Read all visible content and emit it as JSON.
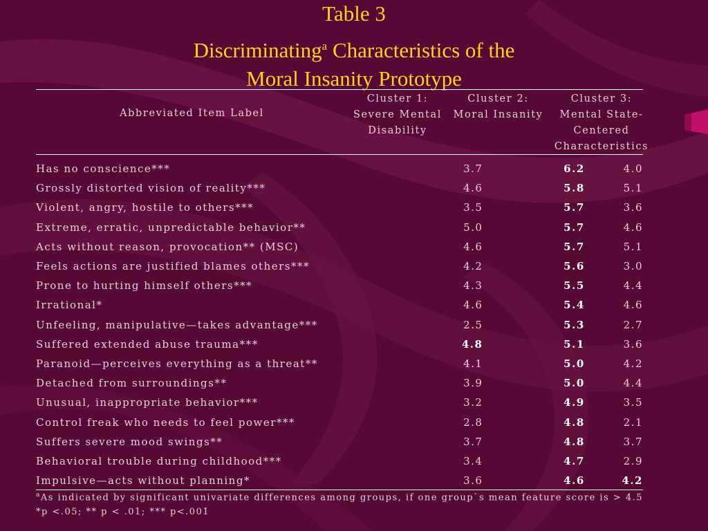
{
  "colors": {
    "background": "#5a0a36",
    "title": "#ffd21f",
    "text": "#e9cfdb",
    "accent": "#c0106a"
  },
  "title": {
    "line1": "Table 3",
    "line2_a": "Discriminating",
    "line2_sup": "a",
    "line2_b": " Characteristics of the",
    "line3": "Moral Insanity Prototype"
  },
  "columns": {
    "item": "Abbreviated Item Label",
    "c1": [
      "Cluster 1:",
      "Severe Mental",
      "Disability"
    ],
    "c2": [
      "Cluster 2:",
      "Moral Insanity"
    ],
    "c3": [
      "Cluster 3:",
      "Mental State-",
      "Centered",
      "Characteristics"
    ]
  },
  "rows": [
    {
      "label": "Has no conscience***",
      "c1": "3.7",
      "c2": "6.2",
      "c3": "4.0",
      "bold": [
        "c2"
      ]
    },
    {
      "label": "Grossly distorted vision of reality***",
      "c1": "4.6",
      "c2": "5.8",
      "c3": "5.1",
      "bold": [
        "c2"
      ]
    },
    {
      "label": "Violent, angry, hostile to others***",
      "c1": "3.5",
      "c2": "5.7",
      "c3": "3.6",
      "bold": [
        "c2"
      ]
    },
    {
      "label": "Extreme, erratic, unpredictable behavior**",
      "c1": "5.0",
      "c2": "5.7",
      "c3": "4.6",
      "bold": [
        "c2"
      ]
    },
    {
      "label": "Acts without reason, provocation** (MSC)",
      "c1": "4.6",
      "c2": "5.7",
      "c3": "5.1",
      "bold": [
        "c2"
      ]
    },
    {
      "label": "Feels actions are justified blames others***",
      "c1": "4.2",
      "c2": "5.6",
      "c3": "3.0",
      "bold": [
        "c2"
      ]
    },
    {
      "label": "Prone to hurting himself others***",
      "c1": "4.3",
      "c2": "5.5",
      "c3": "4.4",
      "bold": [
        "c2"
      ]
    },
    {
      "label": "Irrational*",
      "c1": "4.6",
      "c2": "5.4",
      "c3": "4.6",
      "bold": [
        "c2"
      ]
    },
    {
      "label": "Unfeeling, manipulative—takes advantage***",
      "c1": "2.5",
      "c2": "5.3",
      "c3": "2.7",
      "bold": [
        "c2"
      ]
    },
    {
      "label": "Suffered extended abuse trauma***",
      "c1": "4.8",
      "c2": "5.1",
      "c3": "3.6",
      "bold": [
        "c1",
        "c2"
      ]
    },
    {
      "label": "Paranoid—perceives everything as a threat**",
      "c1": "4.1",
      "c2": "5.0",
      "c3": "4.2",
      "bold": [
        "c2"
      ]
    },
    {
      "label": "Detached from surroundings**",
      "c1": "3.9",
      "c2": "5.0",
      "c3": "4.4",
      "bold": [
        "c2"
      ]
    },
    {
      "label": "Unusual, inappropriate behavior***",
      "c1": "3.2",
      "c2": "4.9",
      "c3": "3.5",
      "bold": [
        "c2"
      ]
    },
    {
      "label": "Control freak who needs to feel power***",
      "c1": "2.8",
      "c2": "4.8",
      "c3": "2.1",
      "bold": [
        "c2"
      ]
    },
    {
      "label": "Suffers severe mood swings**",
      "c1": "3.7",
      "c2": "4.8",
      "c3": "3.7",
      "bold": [
        "c2"
      ]
    },
    {
      "label": "Behavioral trouble during childhood***",
      "c1": "3.4",
      "c2": "4.7",
      "c3": "2.9",
      "bold": [
        "c2"
      ]
    },
    {
      "label": "Impulsive—acts without planning*",
      "c1": "3.6",
      "c2": "4.6",
      "c3": "4.2",
      "bold": [
        "c2",
        "c3"
      ]
    }
  ],
  "footnote": {
    "sup": "a",
    "line1": "As indicated by significant univariate differences among groups, if one group`s mean feature score is > 4.5",
    "line2": "*p <.05; ** p < .01; *** p<.001"
  }
}
